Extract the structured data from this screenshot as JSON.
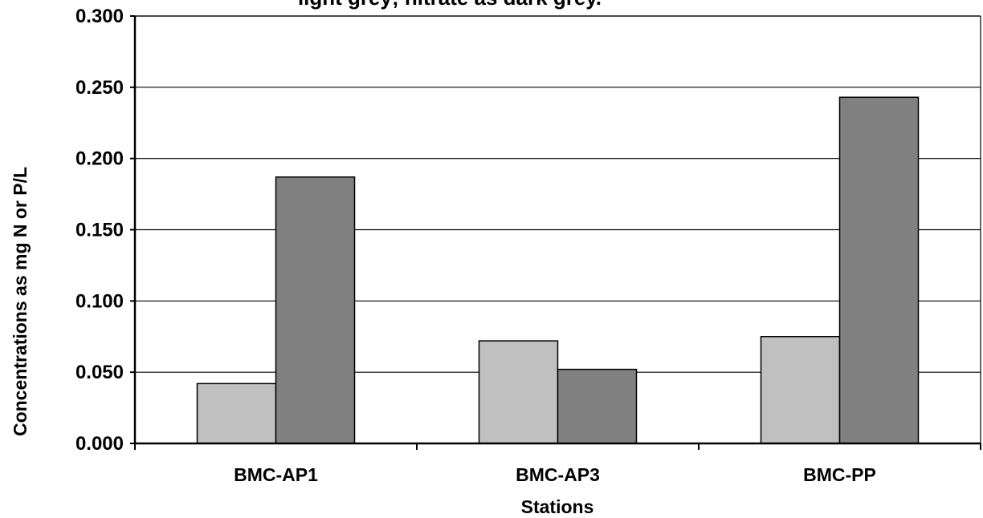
{
  "chart_data": {
    "type": "bar",
    "title": "light grey; nitrate as dark grey.",
    "xlabel": "Stations",
    "ylabel": "Concentrations as mg N or P/L",
    "categories": [
      "BMC-AP1",
      "BMC-AP3",
      "BMC-PP"
    ],
    "series": [
      {
        "values": [
          0.042,
          0.072,
          0.075
        ],
        "color": "#c0c0c0"
      },
      {
        "values": [
          0.187,
          0.052,
          0.243
        ],
        "color": "#808080"
      }
    ],
    "ylim": [
      0,
      0.3
    ],
    "yticks": [
      "0.000",
      "0.050",
      "0.100",
      "0.150",
      "0.200",
      "0.250",
      "0.300"
    ],
    "grid": true,
    "legend": "none"
  }
}
